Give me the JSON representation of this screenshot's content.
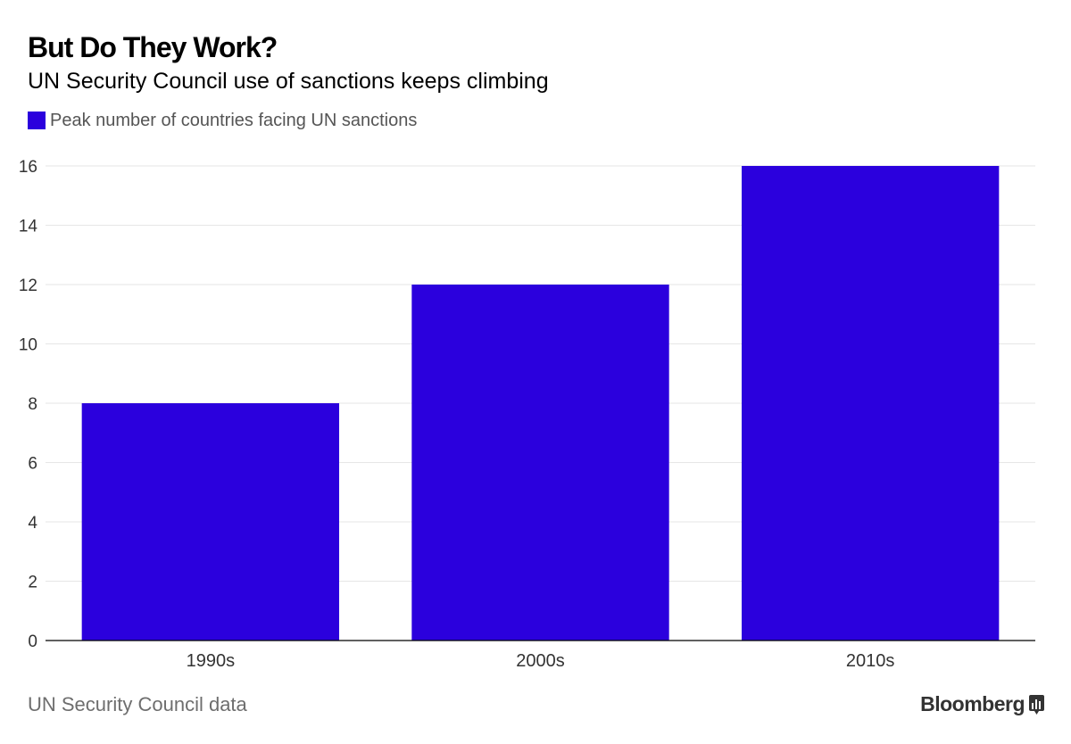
{
  "title": "But Do They Work?",
  "subtitle": "UN Security Council use of sanctions keeps climbing",
  "legend": {
    "label": "Peak number of countries facing UN sanctions",
    "color": "#2b00dd"
  },
  "source": "UN Security Council data",
  "brand": {
    "name": "Bloomberg",
    "icon": "bar-chart-icon"
  },
  "colors": {
    "bar": "#2b00dd",
    "grid": "#e6e6e6",
    "axis": "#000000",
    "tick_text": "#333333"
  },
  "chart_data": {
    "type": "bar",
    "categories": [
      "1990s",
      "2000s",
      "2010s"
    ],
    "series": [
      {
        "name": "Peak number of countries facing UN sanctions",
        "values": [
          8,
          12,
          16
        ]
      }
    ],
    "ylim": [
      0,
      16
    ],
    "yticks": [
      0,
      2,
      4,
      6,
      8,
      10,
      12,
      14,
      16
    ],
    "xlabel": "",
    "ylabel": "",
    "grid": true,
    "legend_position": "top-left"
  }
}
